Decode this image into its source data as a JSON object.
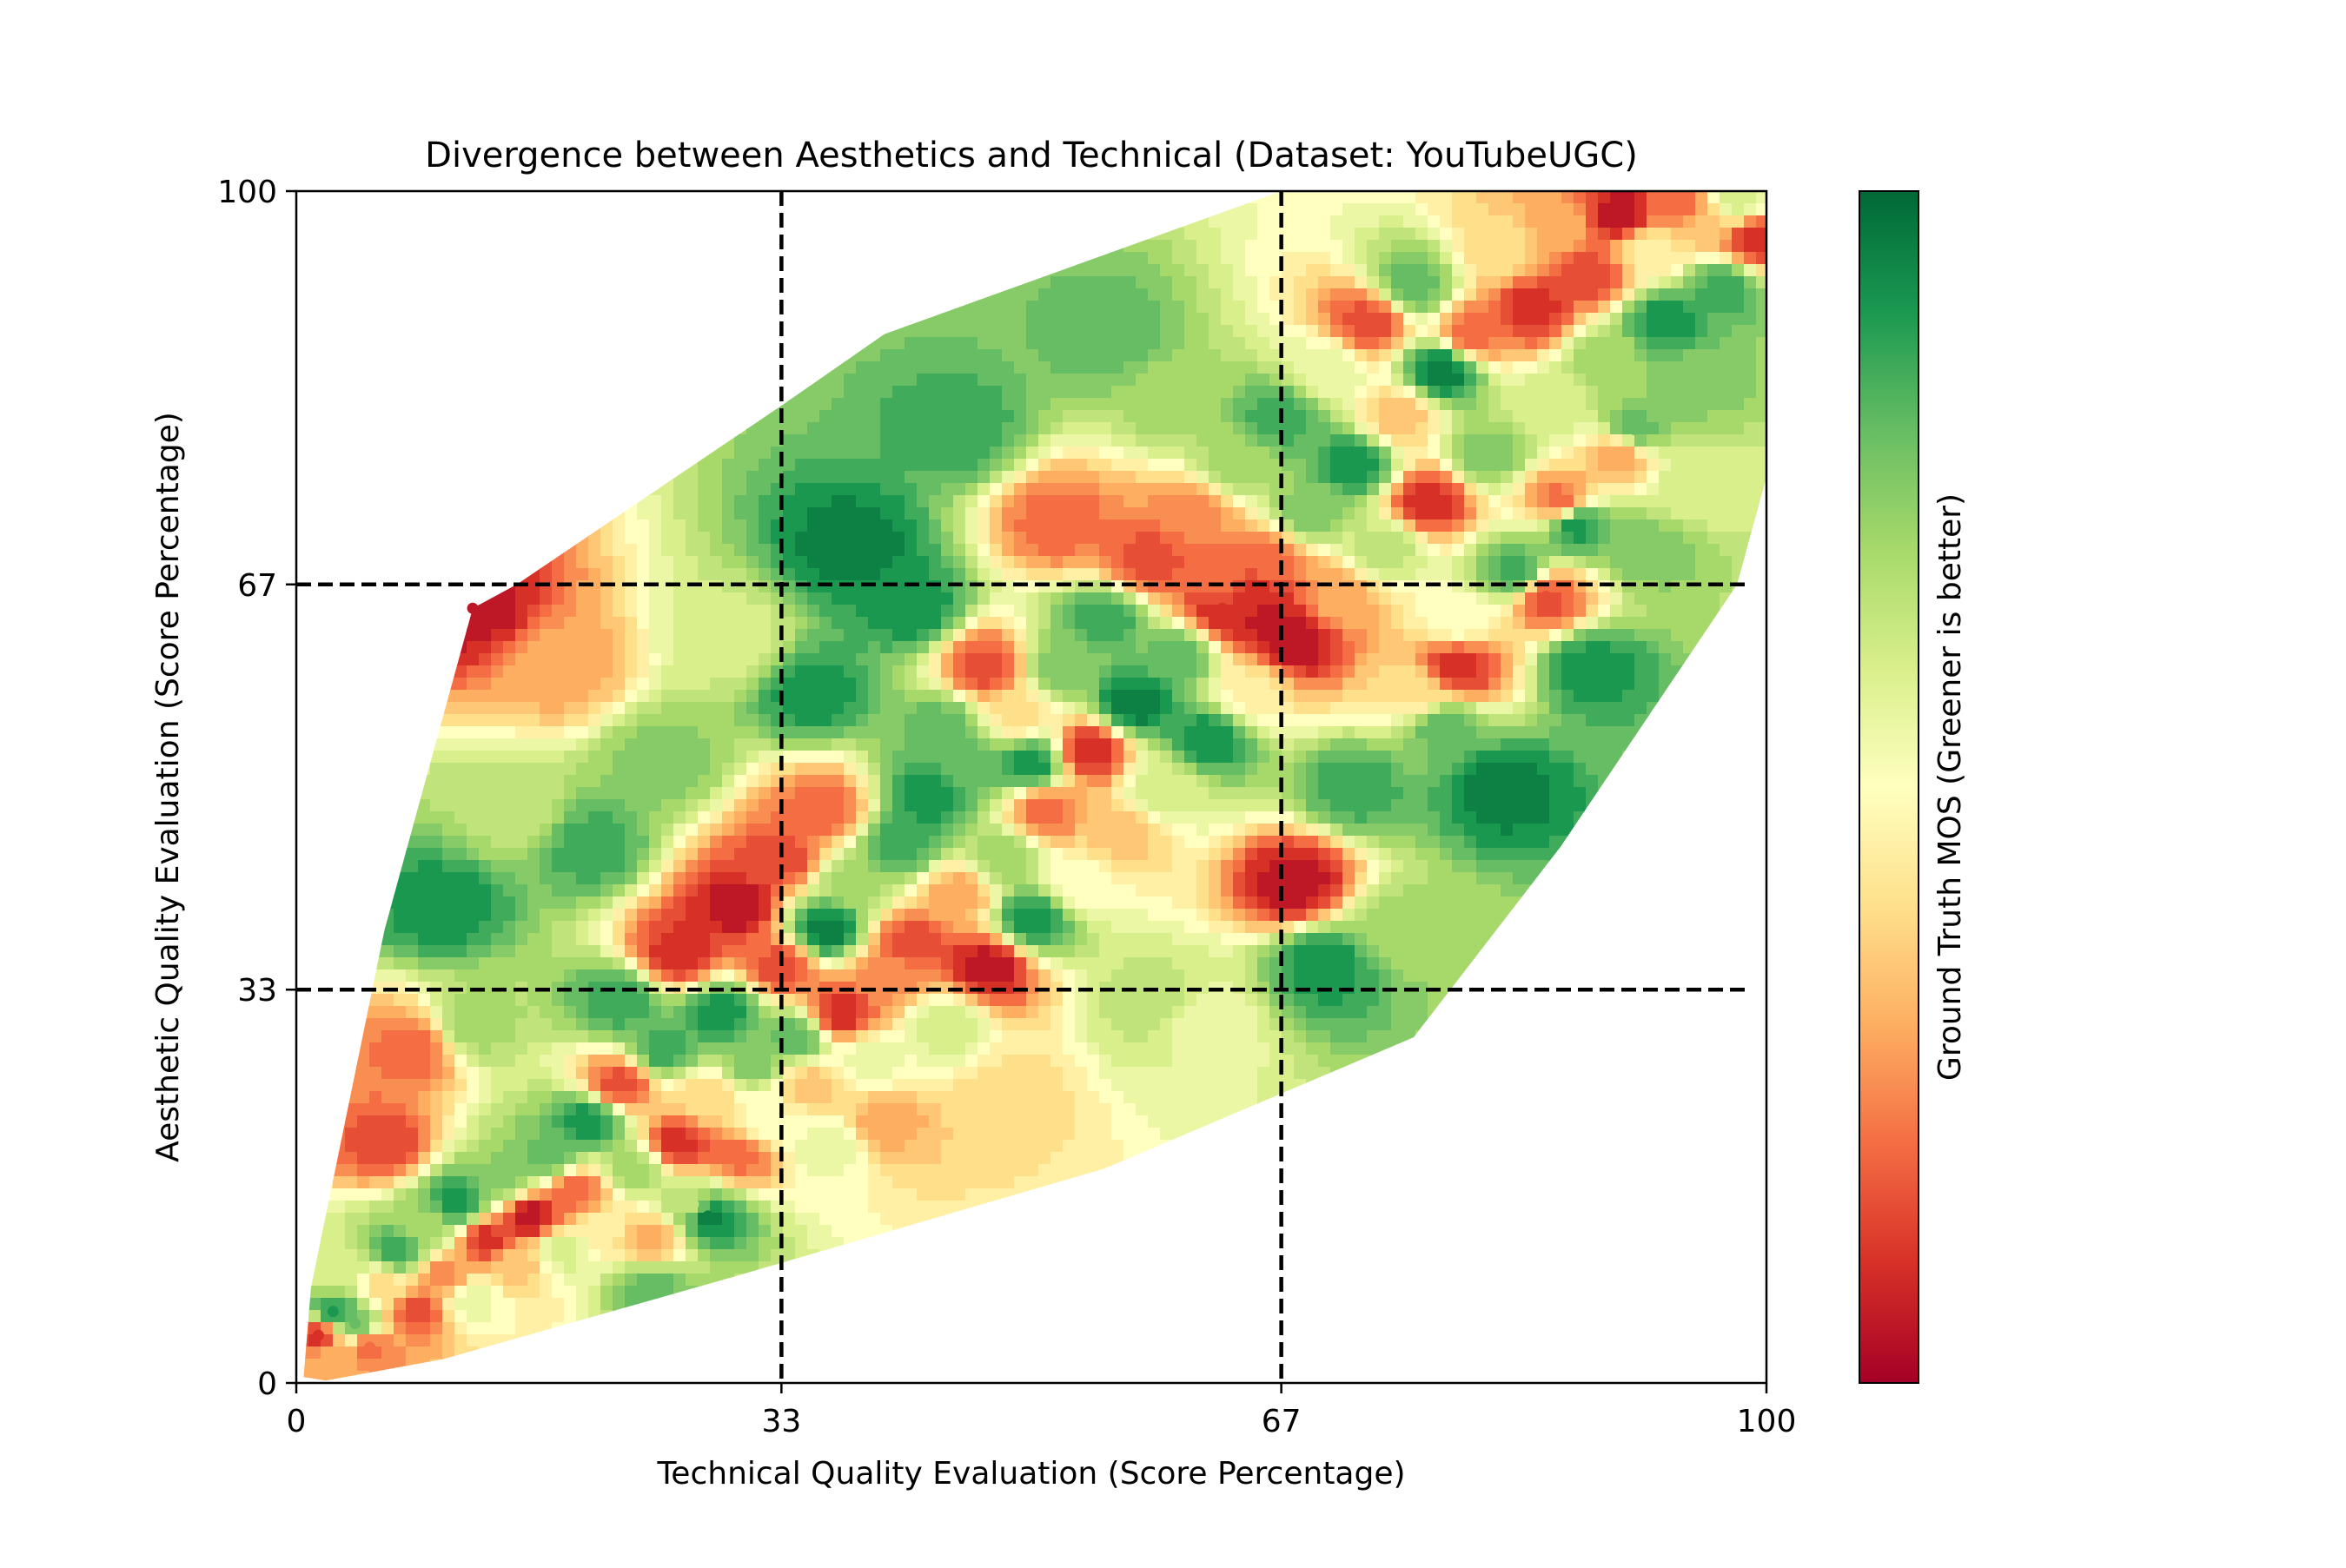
{
  "chart_data": {
    "type": "scatter",
    "subtype": "interpolated-contour-heatmap-with-scatter",
    "title": "Divergence between Aesthetics and Technical (Dataset: YouTubeUGC)",
    "xlabel": "Technical Quality Evaluation (Score Percentage)",
    "ylabel": "Aesthetic Quality Evaluation (Score Percentage)",
    "xlim": [
      0,
      100
    ],
    "ylim": [
      0,
      100
    ],
    "x_ticks": [
      0,
      33,
      67,
      100
    ],
    "y_ticks": [
      0,
      33,
      67,
      100
    ],
    "x_tick_labels": [
      "0",
      "33",
      "67",
      "100"
    ],
    "y_tick_labels": [
      "0",
      "33",
      "67",
      "100"
    ],
    "divider_lines": {
      "x": [
        33,
        67
      ],
      "y": [
        33,
        67
      ],
      "style": "dashed",
      "color": "#000000"
    },
    "grid": false,
    "colorbar": {
      "label": "Ground Truth MOS (Greener is better)",
      "colormap": "RdYlGn",
      "stops": [
        "#a50026",
        "#d73027",
        "#f46d43",
        "#fdae61",
        "#fee08b",
        "#ffffbf",
        "#d9ef8b",
        "#a6d96a",
        "#66bd63",
        "#1a9850",
        "#006837"
      ]
    },
    "hull": [
      [
        0.5,
        0.5
      ],
      [
        2,
        0.2
      ],
      [
        10,
        2
      ],
      [
        30,
        9
      ],
      [
        55,
        18
      ],
      [
        76,
        29
      ],
      [
        86,
        45
      ],
      [
        98,
        67
      ],
      [
        100,
        76
      ],
      [
        100,
        100
      ],
      [
        67,
        100
      ],
      [
        58,
        96
      ],
      [
        40,
        88
      ],
      [
        33,
        82
      ],
      [
        15,
        67
      ],
      [
        12,
        65
      ],
      [
        6,
        38
      ],
      [
        3,
        20
      ],
      [
        1,
        8
      ]
    ],
    "points": [
      [
        1.5,
        4,
        0.1
      ],
      [
        2.5,
        6,
        0.9
      ],
      [
        3,
        9,
        0.6
      ],
      [
        2,
        2,
        0.3
      ],
      [
        4,
        5,
        0.8
      ],
      [
        5,
        3,
        0.2
      ],
      [
        6,
        8,
        0.4
      ],
      [
        7,
        11,
        0.85
      ],
      [
        8,
        6,
        0.15
      ],
      [
        9,
        13,
        0.7
      ],
      [
        10,
        9,
        0.25
      ],
      [
        11,
        15,
        0.9
      ],
      [
        12,
        7,
        0.55
      ],
      [
        13,
        12,
        0.1
      ],
      [
        14,
        17,
        0.75
      ],
      [
        15,
        10,
        0.35
      ],
      [
        16,
        14,
        0.05
      ],
      [
        17,
        19,
        0.8
      ],
      [
        18,
        11,
        0.6
      ],
      [
        19,
        16,
        0.2
      ],
      [
        20,
        22,
        0.9
      ],
      [
        21,
        13,
        0.45
      ],
      [
        22,
        25,
        0.15
      ],
      [
        23,
        18,
        0.7
      ],
      [
        24,
        12,
        0.3
      ],
      [
        25,
        28,
        0.85
      ],
      [
        26,
        20,
        0.1
      ],
      [
        27,
        15,
        0.65
      ],
      [
        28,
        24,
        0.4
      ],
      [
        29,
        31,
        0.9
      ],
      [
        30,
        19,
        0.2
      ],
      [
        31,
        27,
        0.75
      ],
      [
        32,
        22,
        0.5
      ],
      [
        33,
        35,
        0.15
      ],
      [
        34,
        29,
        0.8
      ],
      [
        35,
        25,
        0.35
      ],
      [
        36,
        38,
        0.95
      ],
      [
        37,
        31,
        0.1
      ],
      [
        38,
        42,
        0.7
      ],
      [
        39,
        27,
        0.55
      ],
      [
        40,
        34,
        0.25
      ],
      [
        41,
        45,
        0.85
      ],
      [
        42,
        37,
        0.15
      ],
      [
        43,
        49,
        0.9
      ],
      [
        44,
        30,
        0.6
      ],
      [
        45,
        41,
        0.3
      ],
      [
        46,
        52,
        0.8
      ],
      [
        47,
        35,
        0.05
      ],
      [
        48,
        44,
        0.7
      ],
      [
        49,
        56,
        0.4
      ],
      [
        50,
        39,
        0.9
      ],
      [
        51,
        48,
        0.2
      ],
      [
        52,
        60,
        0.75
      ],
      [
        53,
        42,
        0.5
      ],
      [
        54,
        53,
        0.1
      ],
      [
        55,
        64,
        0.85
      ],
      [
        56,
        46,
        0.35
      ],
      [
        57,
        57,
        0.95
      ],
      [
        58,
        69,
        0.15
      ],
      [
        59,
        50,
        0.6
      ],
      [
        60,
        61,
        0.8
      ],
      [
        61,
        73,
        0.25
      ],
      [
        62,
        54,
        0.9
      ],
      [
        63,
        65,
        0.1
      ],
      [
        64,
        77,
        0.7
      ],
      [
        65,
        58,
        0.45
      ],
      [
        66,
        69,
        0.2
      ],
      [
        67,
        81,
        0.85
      ],
      [
        68,
        62,
        0.05
      ],
      [
        69,
        73,
        0.75
      ],
      [
        70,
        85,
        0.55
      ],
      [
        71,
        66,
        0.3
      ],
      [
        72,
        77,
        0.9
      ],
      [
        73,
        89,
        0.15
      ],
      [
        74,
        70,
        0.65
      ],
      [
        75,
        81,
        0.35
      ],
      [
        76,
        92,
        0.8
      ],
      [
        77,
        74,
        0.1
      ],
      [
        78,
        85,
        0.95
      ],
      [
        79,
        64,
        0.5
      ],
      [
        80,
        88,
        0.2
      ],
      [
        81,
        78,
        0.75
      ],
      [
        82,
        95,
        0.4
      ],
      [
        83,
        68,
        0.85
      ],
      [
        84,
        90,
        0.1
      ],
      [
        85,
        82,
        0.6
      ],
      [
        86,
        97,
        0.3
      ],
      [
        87,
        72,
        0.9
      ],
      [
        88,
        93,
        0.15
      ],
      [
        89,
        86,
        0.7
      ],
      [
        90,
        98,
        0.05
      ],
      [
        91,
        80,
        0.8
      ],
      [
        92,
        95,
        0.45
      ],
      [
        93,
        89,
        0.9
      ],
      [
        94,
        99,
        0.2
      ],
      [
        95,
        84,
        0.75
      ],
      [
        96,
        97,
        0.35
      ],
      [
        97,
        92,
        0.85
      ],
      [
        98,
        99,
        0.6
      ],
      [
        99,
        96,
        0.1
      ],
      [
        35,
        58,
        0.9
      ],
      [
        38,
        70,
        0.95
      ],
      [
        45,
        80,
        0.85
      ],
      [
        55,
        88,
        0.8
      ],
      [
        60,
        82,
        0.7
      ],
      [
        52,
        72,
        0.2
      ],
      [
        30,
        62,
        0.6
      ],
      [
        25,
        52,
        0.75
      ],
      [
        20,
        45,
        0.85
      ],
      [
        15,
        48,
        0.65
      ],
      [
        18,
        60,
        0.3
      ],
      [
        10,
        40,
        0.9
      ],
      [
        8,
        28,
        0.2
      ],
      [
        12,
        30,
        0.7
      ],
      [
        6,
        20,
        0.15
      ],
      [
        48,
        24,
        0.4
      ],
      [
        58,
        32,
        0.65
      ],
      [
        62,
        30,
        0.55
      ],
      [
        70,
        35,
        0.9
      ],
      [
        72,
        50,
        0.85
      ],
      [
        78,
        55,
        0.8
      ],
      [
        82,
        50,
        0.95
      ],
      [
        88,
        60,
        0.9
      ],
      [
        92,
        70,
        0.75
      ],
      [
        95,
        75,
        0.6
      ],
      [
        75,
        38,
        0.7
      ],
      [
        68,
        42,
        0.05
      ],
      [
        42,
        65,
        0.9
      ],
      [
        47,
        60,
        0.15
      ],
      [
        44,
        55,
        0.8
      ],
      [
        50,
        52,
        0.9
      ],
      [
        36,
        48,
        0.2
      ],
      [
        33,
        44,
        0.15
      ],
      [
        30,
        40,
        0.05
      ],
      [
        26,
        36,
        0.1
      ],
      [
        22,
        32,
        0.85
      ],
      [
        40,
        22,
        0.3
      ],
      [
        36,
        20,
        0.55
      ],
      [
        28,
        14,
        0.95
      ],
      [
        24,
        8,
        0.8
      ],
      [
        12,
        65,
        0.05
      ],
      [
        65,
        66,
        0.1
      ],
      [
        66,
        64,
        0.05
      ],
      [
        63,
        67,
        0.2
      ],
      [
        85,
        66,
        0.15
      ],
      [
        79,
        60,
        0.1
      ],
      [
        76,
        58,
        0.4
      ],
      [
        90,
        78,
        0.3
      ],
      [
        86,
        74,
        0.2
      ]
    ]
  }
}
